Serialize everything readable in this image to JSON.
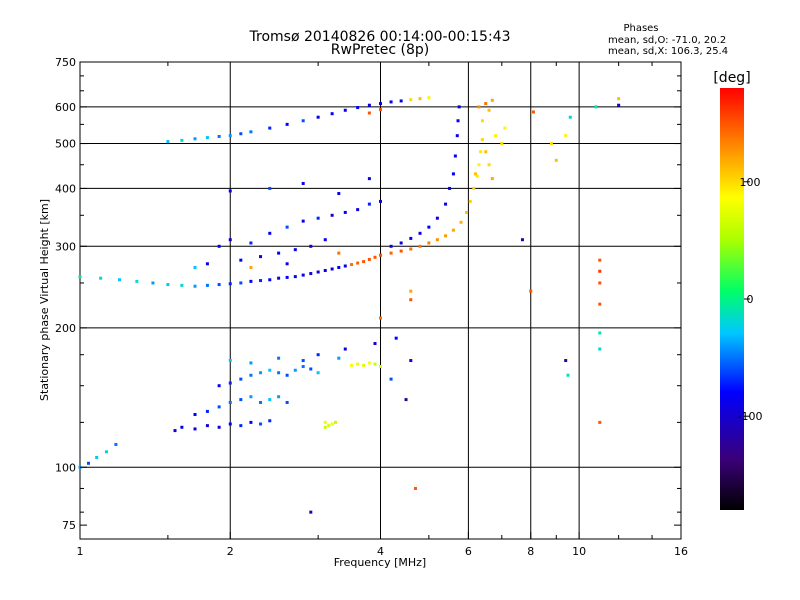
{
  "header": {
    "title_line1": "Tromsø 20140826 00:14:00-00:15:43",
    "title_line2": "RwPretec (8p)"
  },
  "phase_box": {
    "title": "Phases",
    "o_line": "mean, sd,O: -71.0, 20.2",
    "x_line": "mean, sd,X: 106.3, 25.4"
  },
  "colorbar": {
    "label": "[deg]",
    "range": [
      -180,
      180
    ],
    "ticks": [
      {
        "value": 100,
        "label": "100"
      },
      {
        "value": 0,
        "label": "0"
      },
      {
        "value": -100,
        "label": "-100"
      }
    ]
  },
  "chart_data": {
    "type": "scatter",
    "title": "Tromsø 20140826 00:14:00-00:15:43",
    "subtitle": "RwPretec (8p)",
    "xlabel": "Frequency [MHz]",
    "ylabel": "Stationary phase Virtual Height [km]",
    "x_scale": "log",
    "y_scale": "log",
    "xlim": [
      1,
      16
    ],
    "ylim": [
      70,
      750
    ],
    "grid": true,
    "x_ticks": [
      {
        "value": 1,
        "label": "1"
      },
      {
        "value": 2,
        "label": "2"
      },
      {
        "value": 4,
        "label": "4"
      },
      {
        "value": 6,
        "label": "6"
      },
      {
        "value": 8,
        "label": "8"
      },
      {
        "value": 10,
        "label": "10"
      },
      {
        "value": 16,
        "label": "16"
      }
    ],
    "x_minor_ticks": [
      1.5,
      3,
      5,
      7,
      9,
      12,
      14
    ],
    "y_ticks": [
      {
        "value": 75,
        "label": "75"
      },
      {
        "value": 100,
        "label": "100"
      },
      {
        "value": 200,
        "label": "200"
      },
      {
        "value": 300,
        "label": "300"
      },
      {
        "value": 400,
        "label": "400"
      },
      {
        "value": 500,
        "label": "500"
      },
      {
        "value": 600,
        "label": "600"
      },
      {
        "value": 750,
        "label": "750"
      }
    ],
    "y_minor_ticks": [
      80,
      90,
      125,
      150,
      175,
      250,
      350,
      450,
      550,
      650,
      700
    ],
    "color_encoding": "phase [deg]",
    "points": [
      [
        1.0,
        100,
        -40
      ],
      [
        1.04,
        102,
        -60
      ],
      [
        1.08,
        105,
        -30
      ],
      [
        1.13,
        108,
        -20
      ],
      [
        1.18,
        112,
        -50
      ],
      [
        1.0,
        258,
        -10
      ],
      [
        1.1,
        256,
        -20
      ],
      [
        1.2,
        254,
        -30
      ],
      [
        1.3,
        252,
        -20
      ],
      [
        1.4,
        250,
        -40
      ],
      [
        1.5,
        248,
        -30
      ],
      [
        1.6,
        247,
        -20
      ],
      [
        1.7,
        246,
        -40
      ],
      [
        1.8,
        247,
        -50
      ],
      [
        1.9,
        248,
        -60
      ],
      [
        2.0,
        249,
        -70
      ],
      [
        2.1,
        250,
        -60
      ],
      [
        2.2,
        252,
        -80
      ],
      [
        2.3,
        253,
        -70
      ],
      [
        2.4,
        254,
        -80
      ],
      [
        2.5,
        256,
        -90
      ],
      [
        2.6,
        257,
        -80
      ],
      [
        2.7,
        258,
        -85
      ],
      [
        2.8,
        260,
        -90
      ],
      [
        2.9,
        262,
        -95
      ],
      [
        3.0,
        264,
        -90
      ],
      [
        3.1,
        266,
        -95
      ],
      [
        3.2,
        268,
        -90
      ],
      [
        3.3,
        270,
        -85
      ],
      [
        3.4,
        272,
        -90
      ],
      [
        3.5,
        274,
        140
      ],
      [
        3.6,
        276,
        145
      ],
      [
        3.7,
        278,
        150
      ],
      [
        3.8,
        281,
        150
      ],
      [
        3.9,
        284,
        150
      ],
      [
        4.0,
        287,
        150
      ],
      [
        4.2,
        290,
        145
      ],
      [
        4.4,
        293,
        150
      ],
      [
        4.6,
        296,
        140
      ],
      [
        4.8,
        300,
        140
      ],
      [
        5.0,
        305,
        135
      ],
      [
        5.2,
        310,
        130
      ],
      [
        5.4,
        316,
        125
      ],
      [
        5.6,
        325,
        120
      ],
      [
        5.8,
        338,
        115
      ],
      [
        5.95,
        355,
        110
      ],
      [
        6.05,
        375,
        105
      ],
      [
        6.15,
        400,
        100
      ],
      [
        6.25,
        425,
        95
      ],
      [
        6.3,
        450,
        90
      ],
      [
        6.35,
        480,
        95
      ],
      [
        6.4,
        510,
        100
      ],
      [
        4.2,
        300,
        -90
      ],
      [
        4.4,
        305,
        -95
      ],
      [
        4.6,
        312,
        -85
      ],
      [
        4.8,
        320,
        -90
      ],
      [
        5.0,
        330,
        -80
      ],
      [
        5.2,
        345,
        -90
      ],
      [
        5.4,
        370,
        -85
      ],
      [
        5.5,
        400,
        -90
      ],
      [
        5.6,
        430,
        -80
      ],
      [
        5.65,
        470,
        -85
      ],
      [
        5.7,
        520,
        -90
      ],
      [
        5.72,
        560,
        -80
      ],
      [
        5.75,
        600,
        -90
      ],
      [
        1.5,
        505,
        -30
      ],
      [
        1.6,
        508,
        -20
      ],
      [
        1.7,
        512,
        -40
      ],
      [
        1.8,
        515,
        -30
      ],
      [
        1.9,
        518,
        -50
      ],
      [
        2.0,
        520,
        -40
      ],
      [
        2.1,
        525,
        -60
      ],
      [
        2.2,
        530,
        -50
      ],
      [
        2.4,
        540,
        -70
      ],
      [
        2.6,
        550,
        -80
      ],
      [
        2.8,
        560,
        -60
      ],
      [
        3.0,
        570,
        -90
      ],
      [
        3.2,
        580,
        -80
      ],
      [
        3.4,
        590,
        -90
      ],
      [
        3.6,
        598,
        -80
      ],
      [
        3.8,
        605,
        -90
      ],
      [
        4.0,
        610,
        -85
      ],
      [
        4.2,
        615,
        -80
      ],
      [
        4.4,
        618,
        -90
      ],
      [
        4.6,
        622,
        100
      ],
      [
        4.8,
        625,
        110
      ],
      [
        5.0,
        628,
        90
      ],
      [
        3.8,
        582,
        150
      ],
      [
        4.0,
        592,
        150
      ],
      [
        1.9,
        300,
        -80
      ],
      [
        2.0,
        310,
        -90
      ],
      [
        2.2,
        305,
        -70
      ],
      [
        2.4,
        320,
        -80
      ],
      [
        2.6,
        330,
        -60
      ],
      [
        2.8,
        340,
        -90
      ],
      [
        3.0,
        345,
        -70
      ],
      [
        3.2,
        350,
        -100
      ],
      [
        3.4,
        355,
        -80
      ],
      [
        3.6,
        360,
        -90
      ],
      [
        3.8,
        370,
        -70
      ],
      [
        4.0,
        375,
        -95
      ],
      [
        2.1,
        280,
        -90
      ],
      [
        2.3,
        285,
        -100
      ],
      [
        2.5,
        290,
        -85
      ],
      [
        2.7,
        295,
        -90
      ],
      [
        2.9,
        300,
        -95
      ],
      [
        3.1,
        310,
        -80
      ],
      [
        1.7,
        270,
        -30
      ],
      [
        1.8,
        275,
        -90
      ],
      [
        2.2,
        270,
        120
      ],
      [
        2.6,
        275,
        -90
      ],
      [
        3.3,
        290,
        140
      ],
      [
        2.0,
        395,
        -80
      ],
      [
        2.4,
        400,
        -60
      ],
      [
        2.8,
        410,
        -90
      ],
      [
        3.3,
        390,
        -80
      ],
      [
        3.8,
        420,
        -90
      ],
      [
        6.3,
        600,
        130
      ],
      [
        6.5,
        610,
        140
      ],
      [
        6.7,
        620,
        120
      ],
      [
        6.6,
        590,
        110
      ],
      [
        6.4,
        560,
        100
      ],
      [
        6.8,
        520,
        90
      ],
      [
        6.5,
        480,
        110
      ],
      [
        6.6,
        450,
        100
      ],
      [
        6.7,
        420,
        120
      ],
      [
        6.2,
        430,
        110
      ],
      [
        1.55,
        120,
        -90
      ],
      [
        1.6,
        122,
        -80
      ],
      [
        1.7,
        121,
        -90
      ],
      [
        1.8,
        123,
        -100
      ],
      [
        1.9,
        122,
        -90
      ],
      [
        2.0,
        124,
        -80
      ],
      [
        2.1,
        123,
        -70
      ],
      [
        2.2,
        125,
        -80
      ],
      [
        2.3,
        124,
        -60
      ],
      [
        2.4,
        126,
        -70
      ],
      [
        1.7,
        130,
        -80
      ],
      [
        1.8,
        132,
        -70
      ],
      [
        1.9,
        135,
        -60
      ],
      [
        2.0,
        138,
        -50
      ],
      [
        2.1,
        140,
        -60
      ],
      [
        2.2,
        142,
        -40
      ],
      [
        2.3,
        138,
        -50
      ],
      [
        2.4,
        140,
        -30
      ],
      [
        2.5,
        142,
        -40
      ],
      [
        2.6,
        138,
        -60
      ],
      [
        1.9,
        150,
        -80
      ],
      [
        2.0,
        152,
        -70
      ],
      [
        2.1,
        155,
        -60
      ],
      [
        2.2,
        158,
        -50
      ],
      [
        2.3,
        160,
        -40
      ],
      [
        2.4,
        162,
        -30
      ],
      [
        2.5,
        160,
        -50
      ],
      [
        2.6,
        158,
        -60
      ],
      [
        2.7,
        162,
        -40
      ],
      [
        2.8,
        165,
        -50
      ],
      [
        2.9,
        163,
        -60
      ],
      [
        3.0,
        160,
        -30
      ],
      [
        2.0,
        170,
        -30
      ],
      [
        2.2,
        168,
        -40
      ],
      [
        2.5,
        172,
        -50
      ],
      [
        2.8,
        170,
        -60
      ],
      [
        3.0,
        175,
        -70
      ],
      [
        3.3,
        172,
        -40
      ],
      [
        3.5,
        166,
        80
      ],
      [
        3.6,
        167,
        90
      ],
      [
        3.7,
        166,
        70
      ],
      [
        3.8,
        168,
        80
      ],
      [
        3.9,
        167,
        60
      ],
      [
        4.0,
        165,
        70
      ],
      [
        3.1,
        122,
        60
      ],
      [
        3.15,
        123,
        70
      ],
      [
        3.2,
        124,
        80
      ],
      [
        3.25,
        125,
        60
      ],
      [
        3.1,
        125,
        80
      ],
      [
        3.4,
        180,
        -90
      ],
      [
        3.9,
        185,
        -100
      ],
      [
        4.3,
        190,
        -80
      ],
      [
        4.6,
        170,
        -90
      ],
      [
        4.5,
        140,
        -120
      ],
      [
        4.2,
        155,
        -60
      ],
      [
        4.6,
        230,
        150
      ],
      [
        4.6,
        240,
        120
      ],
      [
        4.0,
        210,
        140
      ],
      [
        4.7,
        90,
        150
      ],
      [
        2.9,
        80,
        -100
      ],
      [
        7.7,
        310,
        -110
      ],
      [
        8.0,
        240,
        150
      ],
      [
        9.0,
        460,
        110
      ],
      [
        9.4,
        170,
        -120
      ],
      [
        9.5,
        158,
        -10
      ],
      [
        11.0,
        280,
        150
      ],
      [
        11.0,
        265,
        160
      ],
      [
        11.0,
        250,
        150
      ],
      [
        11.0,
        225,
        150
      ],
      [
        11.0,
        195,
        -10
      ],
      [
        11.0,
        180,
        -20
      ],
      [
        11.0,
        125,
        150
      ],
      [
        12.0,
        605,
        -100
      ],
      [
        12.0,
        625,
        110
      ],
      [
        10.8,
        600,
        -10
      ],
      [
        9.6,
        570,
        -20
      ],
      [
        9.4,
        520,
        90
      ],
      [
        8.8,
        500,
        100
      ],
      [
        8.1,
        585,
        150
      ],
      [
        7.1,
        540,
        90
      ],
      [
        7.0,
        500,
        100
      ]
    ]
  }
}
